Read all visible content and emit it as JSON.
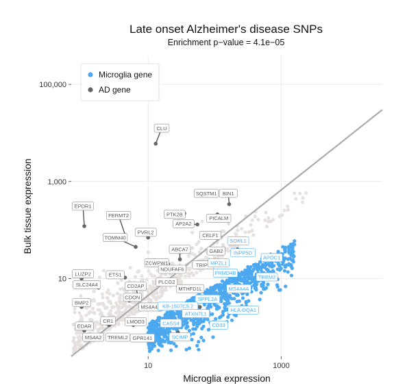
{
  "chart_data": {
    "type": "scatter",
    "title": "Late onset Alzheimer's disease SNPs",
    "subtitle": "Enrichment p−value = 4.1e−05",
    "xlabel": "Microglia expression",
    "ylabel": "Bulk tissue expression",
    "x_scale": "log10",
    "y_scale": "log10",
    "xlim": [
      0.7,
      33000
    ],
    "ylim": [
      0.25,
      380000
    ],
    "x_ticks": [
      {
        "value": 10,
        "label": "10"
      },
      {
        "value": 1000,
        "label": "1000"
      }
    ],
    "y_ticks": [
      {
        "value": 10,
        "label": "10"
      },
      {
        "value": 1000,
        "label": "1,000"
      },
      {
        "value": 100000,
        "label": "100,000"
      }
    ],
    "grid": true,
    "diagonal_line": {
      "from": [
        0.7,
        0.25
      ],
      "to": [
        33000,
        30000
      ]
    },
    "legend": {
      "position": "top-left",
      "entries": [
        {
          "name": "Microglia gene",
          "color": "#4da9ef"
        },
        {
          "name": "AD gene",
          "color": "#666666"
        }
      ]
    },
    "colors": {
      "background_gene": "#e6e1df",
      "microglia_gene": "#4da9ef",
      "ad_gene": "#666666",
      "diagonal": "#aaaaaa",
      "label_text_gray": "#555555",
      "label_text_blue": "#4da9ef"
    },
    "ad_genes": [
      {
        "name": "CLU",
        "x": 13,
        "y": 6000,
        "label_at": [
          16,
          12500
        ],
        "microglia": false
      },
      {
        "name": "EPDR1",
        "x": 1.1,
        "y": 120,
        "label_at": [
          1.05,
          310
        ],
        "microglia": false
      },
      {
        "name": "FERMT2",
        "x": 4.5,
        "y": 80,
        "label_at": [
          3.6,
          200
        ],
        "microglia": false
      },
      {
        "name": "PVRL2",
        "x": 10,
        "y": 70,
        "label_at": [
          9.2,
          90
        ],
        "microglia": false
      },
      {
        "name": "TOMM40",
        "x": 6.5,
        "y": 45,
        "label_at": [
          3.2,
          70
        ],
        "microglia": false
      },
      {
        "name": "PTK2B",
        "x": 35,
        "y": 220,
        "label_at": [
          25,
          210
        ],
        "microglia": false
      },
      {
        "name": "SQSTM1",
        "x": 80,
        "y": 600,
        "label_at": [
          75,
          570
        ],
        "microglia": false
      },
      {
        "name": "BIN1",
        "x": 165,
        "y": 340,
        "label_at": [
          160,
          570
        ],
        "microglia": false
      },
      {
        "name": "AP2A2",
        "x": 55,
        "y": 130,
        "label_at": [
          34,
          135
        ],
        "microglia": false
      },
      {
        "name": "PICALM",
        "x": 110,
        "y": 210,
        "label_at": [
          115,
          175
        ],
        "microglia": false
      },
      {
        "name": "CELF1",
        "x": 80,
        "y": 75,
        "label_at": [
          86,
          78
        ],
        "microglia": false
      },
      {
        "name": "ABCA7",
        "x": 30,
        "y": 25,
        "label_at": [
          30,
          40
        ],
        "microglia": false
      },
      {
        "name": "ZCWPW1",
        "x": 20,
        "y": 20,
        "label_at": [
          13.5,
          21
        ],
        "microglia": false
      },
      {
        "name": "NDUFAF6",
        "x": 22,
        "y": 15,
        "label_at": [
          23,
          15.5
        ],
        "microglia": false
      },
      {
        "name": "GAB2",
        "x": 100,
        "y": 35,
        "label_at": [
          105,
          37
        ],
        "microglia": false
      },
      {
        "name": "TRIP4",
        "x": 60,
        "y": 18,
        "label_at": [
          67,
          19
        ],
        "microglia": false
      },
      {
        "name": "LUZP2",
        "x": 1.0,
        "y": 10,
        "label_at": [
          1.05,
          12.5
        ],
        "microglia": false
      },
      {
        "name": "ETS1",
        "x": 4.5,
        "y": 10.5,
        "label_at": [
          3.2,
          12
        ],
        "microglia": false
      },
      {
        "name": "SLC24A4",
        "x": 1.8,
        "y": 6.5,
        "label_at": [
          1.2,
          7.5
        ],
        "microglia": false
      },
      {
        "name": "CD2AP",
        "x": 7,
        "y": 4.5,
        "label_at": [
          6.5,
          7
        ],
        "microglia": false
      },
      {
        "name": "PLCG2",
        "x": 19,
        "y": 9,
        "label_at": [
          19,
          8.5
        ],
        "microglia": false
      },
      {
        "name": "MTHFD1L",
        "x": 42,
        "y": 5.5,
        "label_at": [
          43,
          6.2
        ],
        "microglia": false
      },
      {
        "name": "BMP2",
        "x": 1.0,
        "y": 2.6,
        "label_at": [
          1.0,
          3.2
        ],
        "microglia": false
      },
      {
        "name": "CDON",
        "x": 5.2,
        "y": 3.5,
        "label_at": [
          5.8,
          4.1
        ],
        "microglia": false
      },
      {
        "name": "MS4A4E",
        "x": 15,
        "y": 2.3,
        "label_at": [
          11,
          2.6
        ],
        "microglia": false
      },
      {
        "name": "CR1",
        "x": 2.6,
        "y": 1.1,
        "label_at": [
          2.5,
          1.35
        ],
        "microglia": false
      },
      {
        "name": "EDAR",
        "x": 1.1,
        "y": 0.85,
        "label_at": [
          1.1,
          1.05
        ],
        "microglia": false
      },
      {
        "name": "LMOD3",
        "x": 6,
        "y": 1.1,
        "label_at": [
          6.5,
          1.3
        ],
        "microglia": false
      },
      {
        "name": "MS4A2",
        "x": 1.5,
        "y": 0.6,
        "label_at": [
          1.5,
          0.62
        ],
        "microglia": false
      },
      {
        "name": "TREML2",
        "x": 2.8,
        "y": 0.6,
        "label_at": [
          3.5,
          0.62
        ],
        "microglia": false
      },
      {
        "name": "GPR141",
        "x": 7,
        "y": 0.6,
        "label_at": [
          8.2,
          0.6
        ],
        "microglia": false
      },
      {
        "name": "SORL1",
        "x": 280,
        "y": 62,
        "label_at": [
          225,
          60
        ],
        "microglia": true
      },
      {
        "name": "INPP5D",
        "x": 220,
        "y": 40,
        "label_at": [
          265,
          34
        ],
        "microglia": true
      },
      {
        "name": "APOC1",
        "x": 640,
        "y": 28,
        "label_at": [
          720,
          27
        ],
        "microglia": true
      },
      {
        "name": "MPZL1",
        "x": 135,
        "y": 22,
        "label_at": [
          115,
          21
        ],
        "microglia": true
      },
      {
        "name": "FRMD4B",
        "x": 165,
        "y": 13,
        "label_at": [
          145,
          13
        ],
        "microglia": true
      },
      {
        "name": "TREM2",
        "x": 760,
        "y": 12,
        "label_at": [
          610,
          10.8
        ],
        "microglia": true
      },
      {
        "name": "MS4A4A",
        "x": 260,
        "y": 6,
        "label_at": [
          230,
          6.2
        ],
        "microglia": true
      },
      {
        "name": "SPPL2A",
        "x": 85,
        "y": 3.8,
        "label_at": [
          78,
          3.8
        ],
        "microglia": true
      },
      {
        "name": "KB-1507C5.2",
        "x": 60,
        "y": 2.6,
        "label_at": [
          28,
          2.7
        ],
        "microglia": true
      },
      {
        "name": "HLA-DQA1",
        "x": 400,
        "y": 2.3,
        "label_at": [
          270,
          2.25
        ],
        "microglia": true
      },
      {
        "name": "ATXN7L1",
        "x": 55,
        "y": 2.2,
        "label_at": [
          52,
          1.9
        ],
        "microglia": true
      },
      {
        "name": "CASS4",
        "x": 22,
        "y": 1.2,
        "label_at": [
          22,
          1.2
        ],
        "microglia": true
      },
      {
        "name": "CD33",
        "x": 120,
        "y": 1.1,
        "label_at": [
          115,
          1.1
        ],
        "microglia": true
      },
      {
        "name": "SCIMP",
        "x": 28,
        "y": 0.78,
        "label_at": [
          30,
          0.63
        ],
        "microglia": true
      }
    ]
  }
}
